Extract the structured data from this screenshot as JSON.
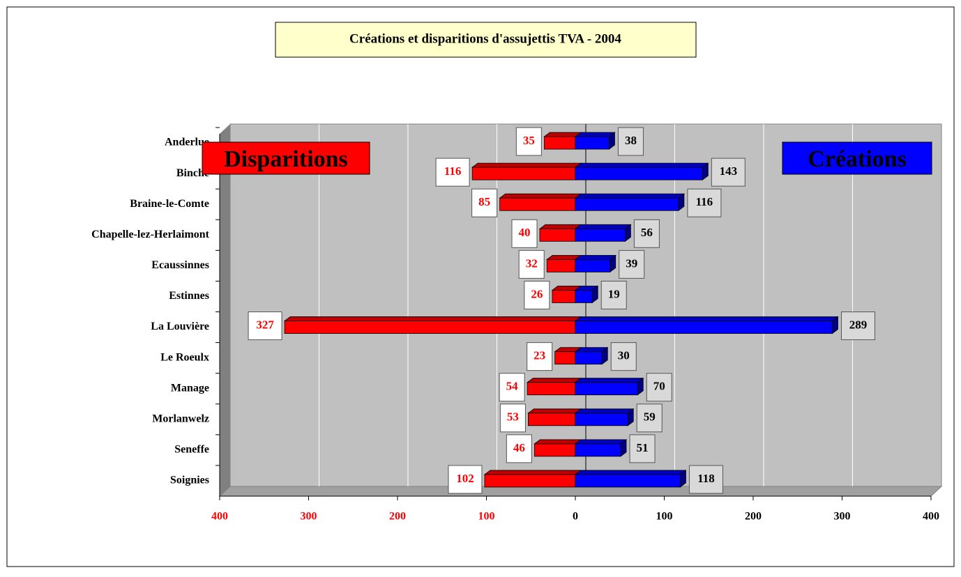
{
  "chart_data": {
    "type": "bar",
    "orientation": "horizontal",
    "title": "Créations et disparitions d'assujettis TVA - 2004",
    "categories": [
      "Anderlue",
      "Binche",
      "Braine-le-Comte",
      "Chapelle-lez-Herlaimont",
      "Ecaussinnes",
      "Estinnes",
      "La Louvière",
      "Le Roeulx",
      "Manage",
      "Morlanwelz",
      "Seneffe",
      "Soignies"
    ],
    "series": [
      {
        "name": "Disparitions",
        "color": "#ff0000",
        "values": [
          -35,
          -116,
          -85,
          -40,
          -32,
          -26,
          -327,
          -23,
          -54,
          -53,
          -46,
          -102
        ],
        "value_labels": [
          "35",
          "116",
          "85",
          "40",
          "32",
          "26",
          "327",
          "23",
          "54",
          "53",
          "46",
          "102"
        ]
      },
      {
        "name": "Créations",
        "color": "#0000ff",
        "values": [
          38,
          143,
          116,
          56,
          39,
          19,
          289,
          30,
          70,
          59,
          51,
          118
        ]
      }
    ],
    "xlim": [
      -400,
      400
    ],
    "xticks": [
      {
        "value": -400,
        "label": "400"
      },
      {
        "value": -300,
        "label": "300"
      },
      {
        "value": -200,
        "label": "200"
      },
      {
        "value": -100,
        "label": "100"
      },
      0,
      100,
      200,
      300,
      400
    ],
    "grid": true
  }
}
